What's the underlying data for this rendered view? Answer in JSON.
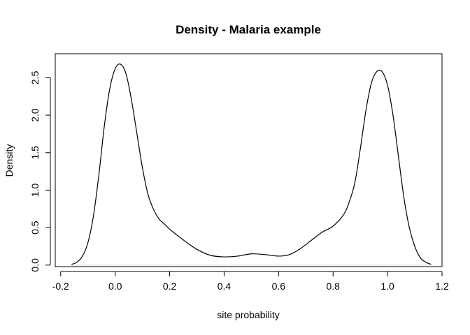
{
  "chart_data": {
    "type": "line",
    "title": "Density - Malaria example",
    "xlabel": "site probability",
    "ylabel": "Density",
    "xlim": [
      -0.22,
      1.2
    ],
    "ylim": [
      -0.02,
      2.82
    ],
    "x_ticks": [
      "-0.2",
      "0.0",
      "0.2",
      "0.4",
      "0.6",
      "0.8",
      "1.0",
      "1.2"
    ],
    "y_ticks": [
      "0.0",
      "0.5",
      "1.0",
      "1.5",
      "2.0",
      "2.5"
    ],
    "grid": false,
    "legend": "none",
    "line_color": "#000000",
    "zero_line_color": "#dddddd",
    "series": [
      {
        "x": [
          -0.16,
          -0.14,
          -0.12,
          -0.1,
          -0.08,
          -0.06,
          -0.04,
          -0.02,
          0.0,
          0.02,
          0.04,
          0.06,
          0.08,
          0.1,
          0.12,
          0.14,
          0.16,
          0.18,
          0.2,
          0.22,
          0.26,
          0.3,
          0.35,
          0.4,
          0.45,
          0.5,
          0.55,
          0.6,
          0.64,
          0.68,
          0.72,
          0.76,
          0.8,
          0.84,
          0.86,
          0.88,
          0.9,
          0.92,
          0.94,
          0.96,
          0.98,
          1.0,
          1.02,
          1.04,
          1.06,
          1.08,
          1.1,
          1.12,
          1.14,
          1.16
        ],
        "y": [
          0.01,
          0.04,
          0.12,
          0.3,
          0.65,
          1.2,
          1.85,
          2.35,
          2.62,
          2.68,
          2.55,
          2.2,
          1.75,
          1.3,
          0.95,
          0.75,
          0.62,
          0.55,
          0.48,
          0.42,
          0.31,
          0.21,
          0.13,
          0.11,
          0.12,
          0.15,
          0.14,
          0.12,
          0.14,
          0.22,
          0.33,
          0.44,
          0.52,
          0.68,
          0.85,
          1.1,
          1.55,
          2.05,
          2.42,
          2.58,
          2.58,
          2.4,
          2.0,
          1.45,
          0.9,
          0.5,
          0.25,
          0.1,
          0.04,
          0.01
        ]
      }
    ]
  }
}
